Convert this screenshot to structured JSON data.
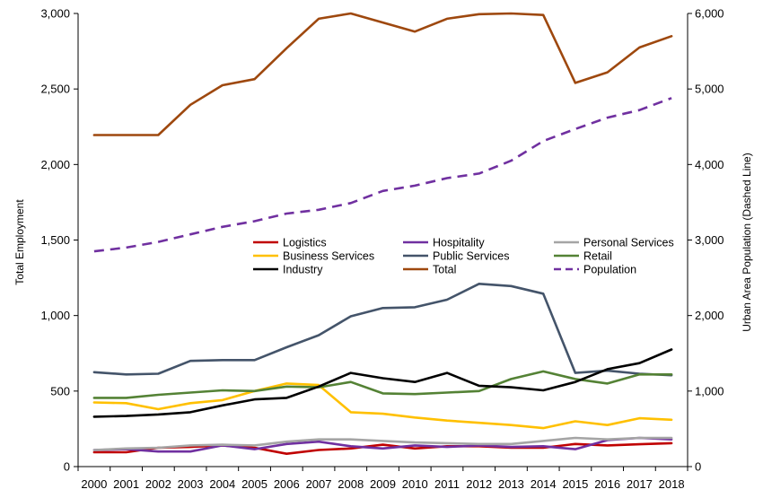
{
  "chart_data": {
    "type": "line",
    "title": "",
    "x": [
      "2000",
      "2001",
      "2002",
      "2003",
      "2004",
      "2005",
      "2006",
      "2007",
      "2008",
      "2009",
      "2010",
      "2011",
      "2012",
      "2013",
      "2014",
      "2015",
      "2016",
      "2017",
      "2018"
    ],
    "ylabel": "Total Employment",
    "ylabel_right": "Urban Area Population (Dashed Line)",
    "ylim": [
      0,
      3000
    ],
    "ylim_right": [
      0,
      6000
    ],
    "yticks": [
      "0",
      "500",
      "1,000",
      "1,500",
      "2,000",
      "2,500",
      "3,000"
    ],
    "yticks_right": [
      "0",
      "1,000",
      "2,000",
      "3,000",
      "4,000",
      "5,000",
      "6,000"
    ],
    "grid": false,
    "legend_position": "center",
    "series": [
      {
        "name": "Logistics",
        "color": "#c00000",
        "axis": "left",
        "dash": false,
        "values": [
          95,
          95,
          125,
          130,
          140,
          125,
          85,
          110,
          120,
          145,
          120,
          135,
          135,
          125,
          125,
          150,
          140,
          148,
          155
        ]
      },
      {
        "name": "Hospitality",
        "color": "#7030a0",
        "axis": "left",
        "dash": false,
        "values": [
          110,
          115,
          100,
          100,
          140,
          115,
          150,
          165,
          135,
          120,
          140,
          130,
          140,
          130,
          135,
          115,
          175,
          190,
          180
        ]
      },
      {
        "name": "Personal Services",
        "color": "#a5a5a5",
        "axis": "left",
        "dash": false,
        "values": [
          110,
          120,
          125,
          140,
          145,
          140,
          165,
          180,
          180,
          170,
          160,
          155,
          150,
          150,
          170,
          190,
          180,
          190,
          190
        ]
      },
      {
        "name": "Business Services",
        "color": "#ffc000",
        "axis": "left",
        "dash": false,
        "values": [
          425,
          420,
          380,
          420,
          440,
          500,
          550,
          540,
          360,
          350,
          325,
          305,
          290,
          275,
          255,
          300,
          275,
          320,
          310
        ]
      },
      {
        "name": "Public Services",
        "color": "#44546a",
        "axis": "left",
        "dash": false,
        "values": [
          625,
          610,
          615,
          700,
          705,
          705,
          790,
          870,
          995,
          1050,
          1055,
          1105,
          1210,
          1195,
          1145,
          620,
          635,
          615,
          605
        ]
      },
      {
        "name": "Retail",
        "color": "#548235",
        "axis": "left",
        "dash": false,
        "values": [
          455,
          455,
          475,
          490,
          505,
          500,
          530,
          525,
          560,
          485,
          480,
          490,
          500,
          580,
          630,
          580,
          550,
          610,
          610
        ]
      },
      {
        "name": "Industry",
        "color": "#000000",
        "axis": "left",
        "dash": false,
        "values": [
          330,
          335,
          345,
          360,
          405,
          445,
          455,
          530,
          620,
          585,
          560,
          620,
          535,
          525,
          505,
          560,
          645,
          685,
          775
        ]
      },
      {
        "name": "Total",
        "color": "#9e480e",
        "axis": "left",
        "dash": false,
        "values": [
          2195,
          2195,
          2195,
          2395,
          2525,
          2565,
          2770,
          2965,
          3000,
          2940,
          2880,
          2965,
          2995,
          3000,
          2990,
          2540,
          2610,
          2775,
          2850
        ]
      },
      {
        "name": "Population",
        "color": "#7030a0",
        "axis": "right",
        "dash": true,
        "values": [
          2850,
          2900,
          2975,
          3075,
          3175,
          3250,
          3350,
          3400,
          3490,
          3650,
          3720,
          3820,
          3880,
          4050,
          4310,
          4470,
          4620,
          4720,
          4880
        ]
      }
    ]
  }
}
